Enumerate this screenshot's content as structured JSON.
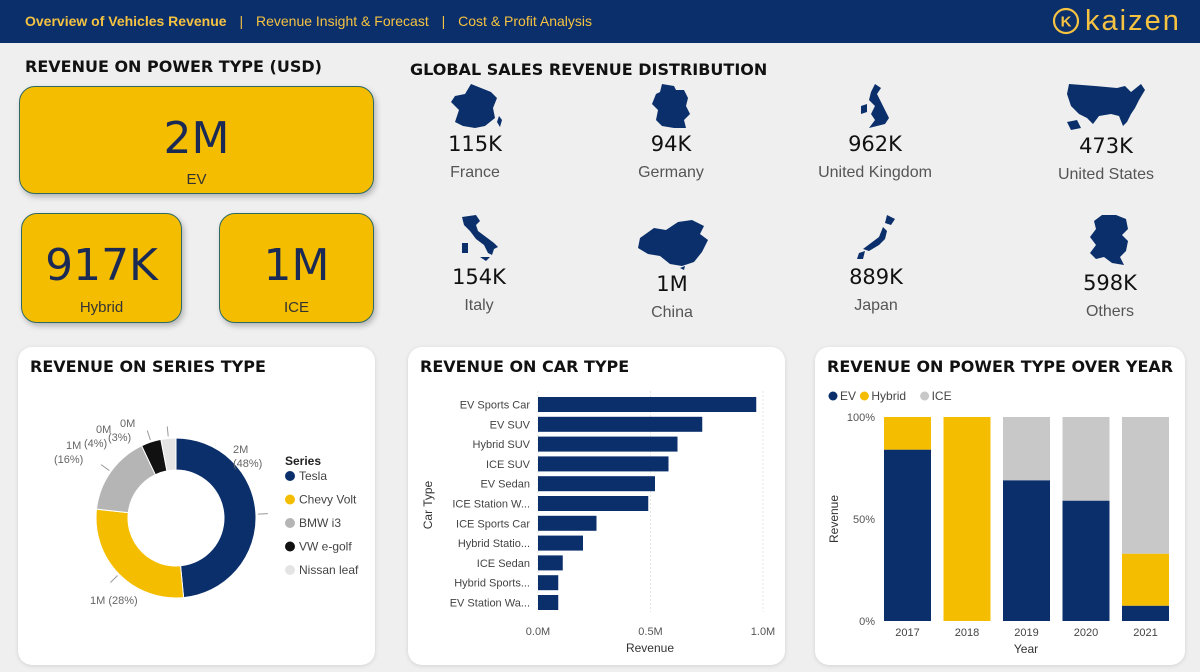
{
  "nav": {
    "active": "Overview of Vehicles Revenue",
    "sep": "|",
    "link1": "Revenue Insight & Forecast",
    "link2": "Cost & Profit Analysis"
  },
  "brand": {
    "name": "kaizen",
    "logo_letter": "K"
  },
  "colors": {
    "navy": "#0a2f6b",
    "gold": "#f5bd00",
    "grey": "#c8c8c8",
    "black": "#111111",
    "lightgrey": "#e4e4e4"
  },
  "power_section": {
    "title": "REVENUE ON POWER TYPE (USD)",
    "cards": [
      {
        "value": "2M",
        "label": "EV"
      },
      {
        "value": "917K",
        "label": "Hybrid"
      },
      {
        "value": "1M",
        "label": "ICE"
      }
    ]
  },
  "geo_section": {
    "title": "GLOBAL SALES REVENUE DISTRIBUTION",
    "regions": [
      {
        "value": "115K",
        "name": "France",
        "icon": "france-map-icon"
      },
      {
        "value": "94K",
        "name": "Germany",
        "icon": "germany-map-icon"
      },
      {
        "value": "962K",
        "name": "United Kingdom",
        "icon": "uk-map-icon"
      },
      {
        "value": "473K",
        "name": "United States",
        "icon": "usa-map-icon"
      },
      {
        "value": "154K",
        "name": "Italy",
        "icon": "italy-map-icon"
      },
      {
        "value": "1M",
        "name": "China",
        "icon": "china-map-icon"
      },
      {
        "value": "889K",
        "name": "Japan",
        "icon": "japan-map-icon"
      },
      {
        "value": "598K",
        "name": "Others",
        "icon": "netherlands-map-icon"
      }
    ]
  },
  "series_card": {
    "title": "REVENUE ON SERIES TYPE",
    "legend_title": "Series"
  },
  "car_card": {
    "title": "REVENUE ON CAR TYPE"
  },
  "year_card": {
    "title": "REVENUE ON POWER TYPE OVER YEAR"
  },
  "chart_data": [
    {
      "type": "pie",
      "variant": "donut",
      "legend_title": "Series",
      "legend_placement": "right",
      "slices": [
        {
          "name": "Tesla",
          "value": 48,
          "label": "2M",
          "pct": "(48%)",
          "color": "#0a2f6b"
        },
        {
          "name": "Chevy Volt",
          "value": 28,
          "label": "1M",
          "pct": "(28%)",
          "color": "#f5bd00"
        },
        {
          "name": "BMW i3",
          "value": 16,
          "label": "1M",
          "pct": "(16%)",
          "color": "#b5b5b5"
        },
        {
          "name": "VW e-golf",
          "value": 4,
          "label": "0M",
          "pct": "(4%)",
          "color": "#111111"
        },
        {
          "name": "Nissan leaf",
          "value": 3,
          "label": "0M",
          "pct": "(3%)",
          "color": "#e4e4e4"
        }
      ]
    },
    {
      "type": "bar",
      "orientation": "horizontal",
      "xlabel": "Revenue",
      "ylabel": "Car Type",
      "xlim": [
        0,
        1.0
      ],
      "xticks": [
        "0.0M",
        "0.5M",
        "1.0M"
      ],
      "categories": [
        "EV Sports Car",
        "EV SUV",
        "Hybrid SUV",
        "ICE SUV",
        "EV Sedan",
        "ICE Station W...",
        "ICE Sports Car",
        "Hybrid Statio...",
        "ICE Sedan",
        "Hybrid Sports...",
        "EV Station Wa..."
      ],
      "values": [
        0.97,
        0.73,
        0.62,
        0.58,
        0.52,
        0.49,
        0.26,
        0.2,
        0.11,
        0.09,
        0.09
      ],
      "color": "#0a2f6b",
      "grid": true
    },
    {
      "type": "bar",
      "stacked": "100%",
      "xlabel": "Year",
      "ylabel": "Revenue",
      "yticks": [
        "0%",
        "50%",
        "100%"
      ],
      "legend_placement": "top-left",
      "categories": [
        "2017",
        "2018",
        "2019",
        "2020",
        "2021"
      ],
      "series": [
        {
          "name": "EV",
          "color": "#0a2f6b",
          "values": [
            84,
            0,
            69,
            59,
            7.5
          ]
        },
        {
          "name": "Hybrid",
          "color": "#f5bd00",
          "values": [
            16,
            100,
            0,
            0,
            25.5
          ]
        },
        {
          "name": "ICE",
          "color": "#c8c8c8",
          "values": [
            0,
            0,
            31,
            41,
            67
          ]
        }
      ]
    }
  ]
}
